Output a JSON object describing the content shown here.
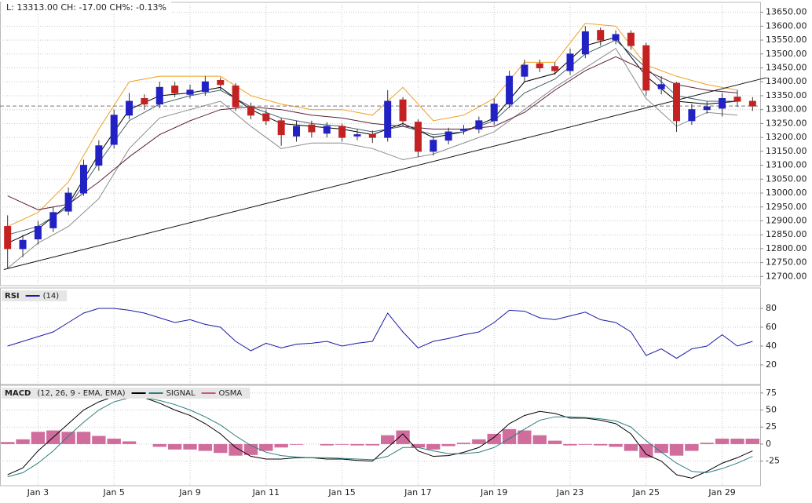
{
  "chart_data": [
    {
      "type": "candlestick",
      "header": "L: 13313.00 CH: -17.00 CH%: -0.13%",
      "open": [
        12880,
        12800,
        12835,
        12875,
        12935,
        13000,
        13100,
        13175,
        13280,
        13340,
        13320,
        13385,
        13355,
        13365,
        13405,
        13385,
        13310,
        13285,
        13260,
        13205,
        13245,
        13215,
        13240,
        13205,
        13210,
        13200,
        13335,
        13255,
        13150,
        13190,
        13225,
        13230,
        13260,
        13320,
        13420,
        13465,
        13455,
        13440,
        13500,
        13585,
        13550,
        13575,
        13530,
        13375,
        13395,
        13260,
        13300,
        13305,
        13345,
        13330
      ],
      "high": [
        12920,
        12850,
        12900,
        12950,
        13020,
        13120,
        13190,
        13300,
        13360,
        13355,
        13400,
        13400,
        13390,
        13420,
        13415,
        13395,
        13325,
        13300,
        13270,
        13260,
        13260,
        13255,
        13250,
        13230,
        13225,
        13370,
        13345,
        13265,
        13205,
        13235,
        13245,
        13275,
        13340,
        13440,
        13480,
        13480,
        13470,
        13520,
        13600,
        13595,
        13585,
        13585,
        13540,
        13420,
        13400,
        13320,
        13330,
        13360,
        13370,
        13345
      ],
      "low": [
        12730,
        12770,
        12815,
        12860,
        12920,
        12990,
        13080,
        13160,
        13265,
        13300,
        13305,
        13345,
        13340,
        13350,
        13370,
        13295,
        13265,
        13245,
        13170,
        13185,
        13200,
        13200,
        13185,
        13190,
        13180,
        13185,
        13240,
        13130,
        13135,
        13175,
        13210,
        13215,
        13245,
        13305,
        13400,
        13435,
        13425,
        13425,
        13485,
        13530,
        13535,
        13515,
        13350,
        13355,
        13220,
        13245,
        13285,
        13275,
        13310,
        13295
      ],
      "close": [
        12800,
        12830,
        12880,
        12930,
        13000,
        13100,
        13170,
        13280,
        13330,
        13320,
        13380,
        13360,
        13370,
        13400,
        13390,
        13310,
        13280,
        13260,
        13210,
        13240,
        13220,
        13240,
        13200,
        13210,
        13200,
        13330,
        13260,
        13150,
        13190,
        13220,
        13230,
        13260,
        13320,
        13420,
        13460,
        13450,
        13440,
        13500,
        13580,
        13550,
        13570,
        13530,
        13370,
        13390,
        13260,
        13300,
        13310,
        13340,
        13330,
        13313
      ],
      "up_color": "#2222c4",
      "down_color": "#c42222",
      "overlay_x": [
        0,
        2,
        4,
        6,
        8,
        10,
        12,
        14,
        16,
        18,
        20,
        22,
        24,
        26,
        28,
        30,
        32,
        34,
        36,
        38,
        40,
        42,
        44,
        46,
        48
      ],
      "series": [
        {
          "color": "#f0a020",
          "values": [
            12880,
            12930,
            13040,
            13230,
            13400,
            13420,
            13420,
            13420,
            13350,
            13320,
            13300,
            13300,
            13280,
            13380,
            13260,
            13280,
            13340,
            13470,
            13470,
            13610,
            13600,
            13460,
            13420,
            13390,
            13370
          ]
        },
        {
          "color": "#8c8c8c",
          "values": [
            12730,
            12820,
            12880,
            12980,
            13160,
            13270,
            13300,
            13330,
            13240,
            13160,
            13180,
            13180,
            13160,
            13120,
            13140,
            13180,
            13220,
            13300,
            13380,
            13450,
            13520,
            13340,
            13240,
            13290,
            13280
          ]
        },
        {
          "color": "#000000",
          "values": [
            12820,
            12870,
            12960,
            13140,
            13300,
            13350,
            13360,
            13380,
            13300,
            13250,
            13240,
            13230,
            13210,
            13250,
            13200,
            13220,
            13270,
            13400,
            13430,
            13530,
            13560,
            13420,
            13330,
            13320,
            13330
          ]
        },
        {
          "color": "#44626b",
          "values": [
            12850,
            12880,
            12950,
            13110,
            13260,
            13320,
            13350,
            13370,
            13310,
            13270,
            13250,
            13240,
            13220,
            13240,
            13210,
            13220,
            13260,
            13360,
            13410,
            13500,
            13550,
            13450,
            13350,
            13330,
            13330
          ]
        },
        {
          "color": "#5b1f3d",
          "values": [
            12990,
            12940,
            12960,
            13040,
            13130,
            13210,
            13260,
            13300,
            13310,
            13300,
            13280,
            13270,
            13250,
            13240,
            13230,
            13230,
            13240,
            13290,
            13370,
            13440,
            13490,
            13440,
            13390,
            13370,
            13360
          ]
        }
      ],
      "trendline": {
        "x": [
          -0.25,
          49.9
        ],
        "values": [
          12725,
          13415
        ]
      },
      "last_value": 13313,
      "ylim": [
        12670,
        13680
      ],
      "yticks": [
        {
          "value": 12700,
          "label": "12700.00"
        },
        {
          "value": 12750,
          "label": "12750.00"
        },
        {
          "value": 12800,
          "label": "12800.00"
        },
        {
          "value": 12850,
          "label": "12850.00"
        },
        {
          "value": 12900,
          "label": "12900.00"
        },
        {
          "value": 12950,
          "label": "12950.00"
        },
        {
          "value": 13000,
          "label": "13000.00"
        },
        {
          "value": 13050,
          "label": "13050.00"
        },
        {
          "value": 13100,
          "label": "13100.00"
        },
        {
          "value": 13150,
          "label": "13150.00"
        },
        {
          "value": 13200,
          "label": "13200.00"
        },
        {
          "value": 13250,
          "label": "13250.00"
        },
        {
          "value": 13300,
          "label": "13300.00"
        },
        {
          "value": 13350,
          "label": "13350.00"
        },
        {
          "value": 13400,
          "label": "13400.00"
        },
        {
          "value": 13450,
          "label": "13450.00"
        },
        {
          "value": 13500,
          "label": "13500.00"
        },
        {
          "value": 13550,
          "label": "13550.00"
        },
        {
          "value": 13600,
          "label": "13600.00"
        },
        {
          "value": 13650,
          "label": "13650.00"
        }
      ],
      "grid": true
    },
    {
      "type": "line",
      "title": "RSI",
      "series": [
        {
          "name": "(14)",
          "color": "#1a1aa8",
          "values": [
            40,
            45,
            50,
            55,
            65,
            75,
            80,
            80,
            78,
            75,
            70,
            65,
            68,
            63,
            60,
            45,
            35,
            43,
            38,
            42,
            43,
            45,
            40,
            43,
            45,
            75,
            55,
            38,
            45,
            48,
            52,
            55,
            65,
            78,
            77,
            70,
            68,
            72,
            76,
            68,
            65,
            55,
            30,
            37,
            27,
            37,
            40,
            52,
            40,
            45
          ]
        }
      ],
      "ylim": [
        0,
        100
      ],
      "yticks": [
        20,
        40,
        60,
        80
      ],
      "grid": true
    },
    {
      "type": "macd",
      "title": "MACD",
      "categories": [
        null,
        null,
        "Jan 3",
        null,
        null,
        null,
        null,
        "Jan 5",
        null,
        null,
        null,
        null,
        "Jan 9",
        null,
        null,
        null,
        null,
        "Jan 11",
        null,
        null,
        null,
        null,
        "Jan 15",
        null,
        null,
        null,
        null,
        "Jan 17",
        null,
        null,
        null,
        null,
        "Jan 19",
        null,
        null,
        null,
        null,
        "Jan 23",
        null,
        null,
        null,
        null,
        "Jan 25",
        null,
        null,
        null,
        null,
        "Jan 29",
        null,
        null
      ],
      "series": [
        {
          "name": "(12, 26, 9 - EMA, EMA)",
          "color": "#000000",
          "values": [
            -45,
            -35,
            -10,
            10,
            30,
            50,
            62,
            70,
            72,
            68,
            60,
            50,
            42,
            30,
            15,
            -5,
            -18,
            -22,
            -22,
            -20,
            -20,
            -22,
            -22,
            -24,
            -25,
            -5,
            15,
            -10,
            -18,
            -17,
            -12,
            -5,
            10,
            30,
            42,
            48,
            45,
            38,
            38,
            35,
            30,
            15,
            -15,
            -25,
            -45,
            -50,
            -40,
            -28,
            -20,
            -10
          ]
        },
        {
          "name": "SIGNAL",
          "color": "#2e7d7d",
          "values": [
            -48,
            -42,
            -28,
            -10,
            12,
            32,
            50,
            62,
            68,
            68,
            64,
            58,
            50,
            40,
            28,
            12,
            -2,
            -12,
            -17,
            -19,
            -20,
            -20,
            -21,
            -22,
            -23,
            -18,
            -5,
            -5,
            -10,
            -14,
            -14,
            -12,
            -5,
            8,
            22,
            35,
            40,
            40,
            39,
            37,
            34,
            25,
            5,
            -12,
            -28,
            -40,
            -42,
            -36,
            -28,
            -18
          ]
        },
        {
          "name": "OSMA",
          "color": "#c8548c",
          "kind": "bar",
          "values": [
            3,
            7,
            18,
            20,
            18,
            18,
            12,
            8,
            4,
            0,
            -4,
            -8,
            -8,
            -10,
            -13,
            -17,
            -16,
            -10,
            -5,
            -1,
            0,
            -2,
            -1,
            -2,
            -2,
            13,
            20,
            -5,
            -8,
            -3,
            2,
            7,
            15,
            22,
            20,
            13,
            5,
            -2,
            -1,
            -2,
            -4,
            -10,
            -20,
            -13,
            -17,
            -10,
            2,
            8,
            8,
            8
          ]
        }
      ],
      "ylim": [
        -60,
        84
      ],
      "yticks": [
        -25,
        0,
        25,
        50,
        75
      ],
      "grid": true
    }
  ]
}
